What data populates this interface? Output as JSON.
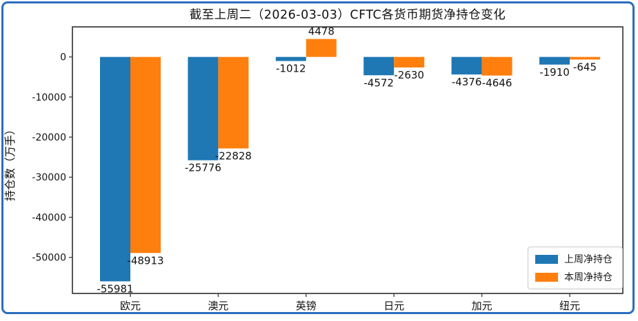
{
  "chart_data": {
    "type": "bar",
    "title": "截至上周二（2026-03-03）CFTC各货币期货净持仓变化",
    "ylabel": "持仓数（万手）",
    "xlabel": "",
    "categories": [
      "欧元",
      "澳元",
      "英镑",
      "日元",
      "加元",
      "纽元"
    ],
    "category_keys": [
      "eur",
      "aud",
      "gbp",
      "jpy",
      "cad",
      "nzd"
    ],
    "series": [
      {
        "name": "上周净持仓",
        "key": "prev-week",
        "color": "#1f77b4",
        "values": [
          -55981,
          -25776,
          -1012,
          -4572,
          -4376,
          -1910
        ]
      },
      {
        "name": "本周净持仓",
        "key": "this-week",
        "color": "#ff7f0e",
        "values": [
          -48913,
          -22828,
          4478,
          -2630,
          -4646,
          -645
        ]
      }
    ],
    "bar_value_labels": true,
    "yticks": [
      0,
      -10000,
      -20000,
      -30000,
      -40000,
      -50000
    ],
    "ylim": [
      -59000,
      7500
    ],
    "grid": false,
    "legend_position": "lower right"
  },
  "colors": {
    "frame_border": "#2b6cbd",
    "axis_spine": "#444444",
    "text": "#111111",
    "series_blue": "#1f77b4",
    "series_orange": "#ff7f0e"
  }
}
